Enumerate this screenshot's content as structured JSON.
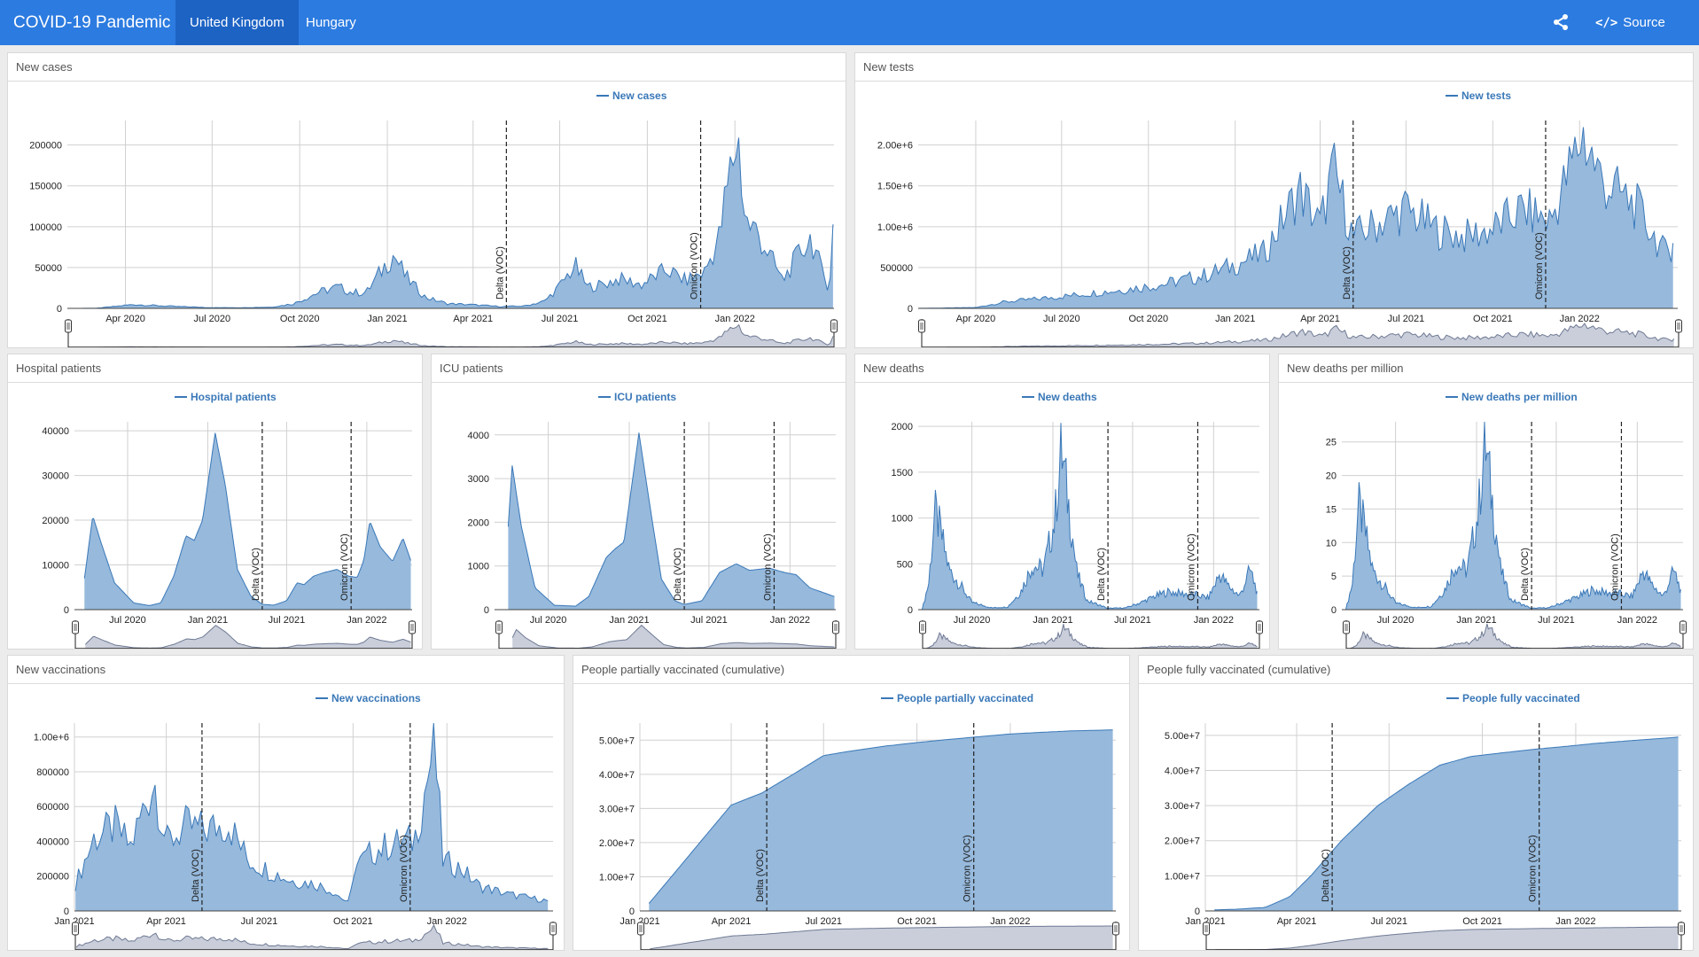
{
  "app": {
    "title": "COVID-19 Pandemic",
    "tabs": [
      {
        "label": "United Kingdom",
        "active": true
      },
      {
        "label": "Hungary",
        "active": false
      }
    ],
    "share_icon": "share-icon",
    "source_code_label": "Source Code",
    "source_code_icon": "code-icon",
    "brand_color": "#2c7be0"
  },
  "colors": {
    "series_line": "#3a78b8",
    "series_fill": "#96b9dc",
    "navigator_fill": "#c9ceda",
    "navigator_line": "#6f7a94",
    "grid": "#d0d0d0",
    "event_line": "#222222"
  },
  "events": [
    {
      "label": "Delta (VOC)",
      "date": "2021-05-06"
    },
    {
      "label": "Omicron (VOC)",
      "date": "2021-11-26"
    }
  ],
  "charts": [
    {
      "id": "new-cases",
      "title": "New cases",
      "legend": "New cases",
      "type": "area",
      "x_range": [
        "2020-01-31",
        "2022-04-15"
      ],
      "x_ticks": [
        "Apr 2020",
        "Jul 2020",
        "Oct 2020",
        "Jan 2021",
        "Apr 2021",
        "Jul 2021",
        "Oct 2021",
        "Jan 2022"
      ],
      "y_ticks": [
        "0",
        "50000",
        "100000",
        "150000",
        "200000"
      ],
      "y_max": 230000,
      "points": [
        [
          "2020-01-31",
          0
        ],
        [
          "2020-03-01",
          100
        ],
        [
          "2020-04-10",
          4800
        ],
        [
          "2020-05-15",
          2800
        ],
        [
          "2020-06-30",
          900
        ],
        [
          "2020-08-01",
          850
        ],
        [
          "2020-09-01",
          1500
        ],
        [
          "2020-09-25",
          6000
        ],
        [
          "2020-10-20",
          20000
        ],
        [
          "2020-11-10",
          27000
        ],
        [
          "2020-11-25",
          20000
        ],
        [
          "2020-12-10",
          20000
        ],
        [
          "2020-12-30",
          55000
        ],
        [
          "2021-01-08",
          68000
        ],
        [
          "2021-01-20",
          40000
        ],
        [
          "2021-02-10",
          14000
        ],
        [
          "2021-03-05",
          6000
        ],
        [
          "2021-04-01",
          4500
        ],
        [
          "2021-05-01",
          2200
        ],
        [
          "2021-05-25",
          3000
        ],
        [
          "2021-06-15",
          9000
        ],
        [
          "2021-07-01",
          28000
        ],
        [
          "2021-07-17",
          54000
        ],
        [
          "2021-07-30",
          27000
        ],
        [
          "2021-08-15",
          30000
        ],
        [
          "2021-09-01",
          37000
        ],
        [
          "2021-09-25",
          30000
        ],
        [
          "2021-10-21",
          49000
        ],
        [
          "2021-11-10",
          35000
        ],
        [
          "2021-11-30",
          46000
        ],
        [
          "2021-12-15",
          88000
        ],
        [
          "2021-12-29",
          185000
        ],
        [
          "2022-01-04",
          218000
        ],
        [
          "2022-01-12",
          110000
        ],
        [
          "2022-01-25",
          95000
        ],
        [
          "2022-02-05",
          70000
        ],
        [
          "2022-02-20",
          35000
        ],
        [
          "2022-03-10",
          70000
        ],
        [
          "2022-03-22",
          90000
        ],
        [
          "2022-04-01",
          50000
        ],
        [
          "2022-04-10",
          25000
        ],
        [
          "2022-04-14",
          100000
        ]
      ]
    },
    {
      "id": "new-tests",
      "title": "New tests",
      "legend": "New tests",
      "type": "area",
      "x_range": [
        "2020-01-31",
        "2022-04-15"
      ],
      "x_ticks": [
        "Apr 2020",
        "Jul 2020",
        "Oct 2020",
        "Jan 2021",
        "Apr 2021",
        "Jul 2021",
        "Oct 2021",
        "Jan 2022"
      ],
      "y_ticks": [
        "0",
        "500000",
        "1.00e+6",
        "1.50e+6",
        "2.00e+6"
      ],
      "y_max": 2300000,
      "points": [
        [
          "2020-01-31",
          0
        ],
        [
          "2020-04-01",
          10000
        ],
        [
          "2020-05-01",
          80000
        ],
        [
          "2020-07-01",
          150000
        ],
        [
          "2020-09-01",
          230000
        ],
        [
          "2020-10-15",
          300000
        ],
        [
          "2020-12-01",
          420000
        ],
        [
          "2021-01-01",
          550000
        ],
        [
          "2021-02-01",
          700000
        ],
        [
          "2021-03-10",
          1500000
        ],
        [
          "2021-04-01",
          1050000
        ],
        [
          "2021-04-15",
          1750000
        ],
        [
          "2021-05-06",
          900000
        ],
        [
          "2021-05-20",
          1000000
        ],
        [
          "2021-07-01",
          1250000
        ],
        [
          "2021-08-01",
          1000000
        ],
        [
          "2021-09-01",
          900000
        ],
        [
          "2021-10-01",
          1000000
        ],
        [
          "2021-11-01",
          1250000
        ],
        [
          "2021-12-01",
          1100000
        ],
        [
          "2021-12-20",
          1700000
        ],
        [
          "2022-01-04",
          2200000
        ],
        [
          "2022-01-25",
          1600000
        ],
        [
          "2022-03-01",
          1300000
        ],
        [
          "2022-04-01",
          700000
        ],
        [
          "2022-04-10",
          800000
        ]
      ]
    },
    {
      "id": "hospital-patients",
      "title": "Hospital patients",
      "legend": "Hospital patients",
      "type": "area",
      "x_range": [
        "2020-03-01",
        "2022-04-15"
      ],
      "x_ticks": [
        "Jul 2020",
        "Jan 2021",
        "Jul 2021",
        "Jan 2022"
      ],
      "y_ticks": [
        "0",
        "10000",
        "20000",
        "30000",
        "40000"
      ],
      "y_max": 42000,
      "points": [
        [
          "2020-03-24",
          7000
        ],
        [
          "2020-04-12",
          21000
        ],
        [
          "2020-05-01",
          15000
        ],
        [
          "2020-06-01",
          6000
        ],
        [
          "2020-07-15",
          1500
        ],
        [
          "2020-08-20",
          900
        ],
        [
          "2020-09-15",
          1500
        ],
        [
          "2020-10-15",
          7500
        ],
        [
          "2020-11-12",
          16500
        ],
        [
          "2020-12-01",
          15500
        ],
        [
          "2020-12-20",
          20000
        ],
        [
          "2021-01-18",
          39500
        ],
        [
          "2021-02-10",
          28000
        ],
        [
          "2021-03-10",
          9000
        ],
        [
          "2021-04-10",
          3000
        ],
        [
          "2021-05-06",
          1200
        ],
        [
          "2021-06-01",
          1000
        ],
        [
          "2021-07-01",
          2000
        ],
        [
          "2021-07-25",
          6000
        ],
        [
          "2021-08-10",
          5600
        ],
        [
          "2021-09-01",
          7500
        ],
        [
          "2021-09-25",
          8300
        ],
        [
          "2021-10-25",
          9000
        ],
        [
          "2021-11-20",
          7500
        ],
        [
          "2021-12-10",
          7200
        ],
        [
          "2021-12-25",
          11000
        ],
        [
          "2022-01-08",
          19800
        ],
        [
          "2022-02-01",
          14000
        ],
        [
          "2022-03-01",
          10800
        ],
        [
          "2022-03-25",
          16000
        ],
        [
          "2022-04-12",
          11000
        ]
      ]
    },
    {
      "id": "icu-patients",
      "title": "ICU patients",
      "legend": "ICU patients",
      "type": "area",
      "x_range": [
        "2020-03-01",
        "2022-04-15"
      ],
      "x_ticks": [
        "Jul 2020",
        "Jan 2021",
        "Jul 2021",
        "Jan 2022"
      ],
      "y_ticks": [
        "0",
        "1000",
        "2000",
        "3000",
        "4000"
      ],
      "y_max": 4300,
      "points": [
        [
          "2020-04-01",
          1900
        ],
        [
          "2020-04-10",
          3300
        ],
        [
          "2020-05-01",
          1900
        ],
        [
          "2020-06-01",
          500
        ],
        [
          "2020-07-15",
          100
        ],
        [
          "2020-09-01",
          80
        ],
        [
          "2020-10-01",
          300
        ],
        [
          "2020-11-10",
          1200
        ],
        [
          "2020-12-01",
          1400
        ],
        [
          "2020-12-20",
          1550
        ],
        [
          "2021-01-23",
          4050
        ],
        [
          "2021-02-15",
          2500
        ],
        [
          "2021-03-15",
          700
        ],
        [
          "2021-04-15",
          200
        ],
        [
          "2021-05-06",
          120
        ],
        [
          "2021-06-15",
          200
        ],
        [
          "2021-07-25",
          850
        ],
        [
          "2021-09-01",
          1050
        ],
        [
          "2021-10-01",
          900
        ],
        [
          "2021-11-15",
          950
        ],
        [
          "2021-12-20",
          850
        ],
        [
          "2022-01-15",
          800
        ],
        [
          "2022-02-15",
          500
        ],
        [
          "2022-04-12",
          300
        ]
      ]
    },
    {
      "id": "new-deaths",
      "title": "New deaths",
      "legend": "New deaths",
      "type": "area",
      "x_range": [
        "2020-03-01",
        "2022-04-15"
      ],
      "x_ticks": [
        "Jul 2020",
        "Jan 2021",
        "Jul 2021",
        "Jan 2022"
      ],
      "y_ticks": [
        "0",
        "500",
        "1000",
        "1500",
        "2000"
      ],
      "y_max": 2050,
      "points": [
        [
          "2020-03-10",
          0
        ],
        [
          "2020-03-25",
          300
        ],
        [
          "2020-04-08",
          1100
        ],
        [
          "2020-04-20",
          900
        ],
        [
          "2020-05-10",
          450
        ],
        [
          "2020-06-01",
          300
        ],
        [
          "2020-07-01",
          80
        ],
        [
          "2020-08-15",
          20
        ],
        [
          "2020-09-20",
          30
        ],
        [
          "2020-10-20",
          200
        ],
        [
          "2020-11-15",
          500
        ],
        [
          "2020-12-10",
          450
        ],
        [
          "2021-01-05",
          1000
        ],
        [
          "2021-01-20",
          1800
        ],
        [
          "2021-02-05",
          1200
        ],
        [
          "2021-02-25",
          400
        ],
        [
          "2021-03-20",
          100
        ],
        [
          "2021-05-06",
          15
        ],
        [
          "2021-06-15",
          20
        ],
        [
          "2021-07-20",
          80
        ],
        [
          "2021-08-20",
          150
        ],
        [
          "2021-09-20",
          200
        ],
        [
          "2021-10-20",
          180
        ],
        [
          "2021-11-20",
          170
        ],
        [
          "2021-12-20",
          130
        ],
        [
          "2022-01-15",
          400
        ],
        [
          "2022-02-01",
          280
        ],
        [
          "2022-03-01",
          150
        ],
        [
          "2022-03-25",
          450
        ],
        [
          "2022-04-10",
          200
        ]
      ]
    },
    {
      "id": "new-deaths-per-million",
      "title": "New deaths per million",
      "legend": "New deaths per million",
      "type": "area",
      "x_range": [
        "2020-03-01",
        "2022-04-15"
      ],
      "x_ticks": [
        "Jul 2020",
        "Jan 2021",
        "Jul 2021",
        "Jan 2022"
      ],
      "y_ticks": [
        "0",
        "5",
        "10",
        "15",
        "20",
        "25"
      ],
      "y_max": 28,
      "points": [
        [
          "2020-03-10",
          0
        ],
        [
          "2020-03-25",
          4
        ],
        [
          "2020-04-08",
          16
        ],
        [
          "2020-04-20",
          13
        ],
        [
          "2020-05-10",
          6
        ],
        [
          "2020-06-01",
          4
        ],
        [
          "2020-07-01",
          1
        ],
        [
          "2020-08-15",
          0.3
        ],
        [
          "2020-09-20",
          0.5
        ],
        [
          "2020-10-20",
          3
        ],
        [
          "2020-11-15",
          7
        ],
        [
          "2020-12-10",
          6
        ],
        [
          "2021-01-05",
          15
        ],
        [
          "2021-01-20",
          26
        ],
        [
          "2021-02-05",
          17
        ],
        [
          "2021-02-25",
          6
        ],
        [
          "2021-03-20",
          1.5
        ],
        [
          "2021-05-06",
          0.2
        ],
        [
          "2021-06-15",
          0.3
        ],
        [
          "2021-07-20",
          1.2
        ],
        [
          "2021-08-20",
          2
        ],
        [
          "2021-09-20",
          3
        ],
        [
          "2021-10-20",
          2.6
        ],
        [
          "2021-11-20",
          2.5
        ],
        [
          "2021-12-20",
          2
        ],
        [
          "2022-01-15",
          6
        ],
        [
          "2022-02-01",
          4
        ],
        [
          "2022-03-01",
          2
        ],
        [
          "2022-03-25",
          6
        ],
        [
          "2022-04-10",
          3
        ]
      ]
    },
    {
      "id": "new-vaccinations",
      "title": "New vaccinations",
      "legend": "New vaccinations",
      "type": "area",
      "x_range": [
        "2021-01-01",
        "2022-04-15"
      ],
      "x_ticks": [
        "Jan 2021",
        "Apr 2021",
        "Jul 2021",
        "Oct 2021",
        "Jan 2022"
      ],
      "y_ticks": [
        "0",
        "200000",
        "400000",
        "600000",
        "800000",
        "1.00e+6"
      ],
      "y_max": 1080000,
      "points": [
        [
          "2021-01-02",
          160000
        ],
        [
          "2021-01-20",
          430000
        ],
        [
          "2021-02-10",
          500000
        ],
        [
          "2021-02-25",
          380000
        ],
        [
          "2021-03-20",
          780000
        ],
        [
          "2021-04-01",
          400000
        ],
        [
          "2021-04-20",
          500000
        ],
        [
          "2021-05-10",
          480000
        ],
        [
          "2021-06-01",
          520000
        ],
        [
          "2021-06-20",
          300000
        ],
        [
          "2021-07-10",
          240000
        ],
        [
          "2021-08-01",
          180000
        ],
        [
          "2021-08-25",
          160000
        ],
        [
          "2021-09-10",
          120000
        ],
        [
          "2021-09-28",
          40000
        ],
        [
          "2021-10-01",
          250000
        ],
        [
          "2021-10-20",
          350000
        ],
        [
          "2021-11-10",
          400000
        ],
        [
          "2021-11-30",
          420000
        ],
        [
          "2021-12-10",
          700000
        ],
        [
          "2021-12-20",
          1000000
        ],
        [
          "2021-12-28",
          300000
        ],
        [
          "2022-01-15",
          250000
        ],
        [
          "2022-02-01",
          150000
        ],
        [
          "2022-03-01",
          100000
        ],
        [
          "2022-04-10",
          60000
        ]
      ]
    },
    {
      "id": "people-partially-vaccinated",
      "title": "People partially vaccinated (cumulative)",
      "legend": "People partially vaccinated",
      "type": "area",
      "x_range": [
        "2021-01-01",
        "2022-04-15"
      ],
      "x_ticks": [
        "Jan 2021",
        "Apr 2021",
        "Jul 2021",
        "Oct 2021",
        "Jan 2022"
      ],
      "y_ticks": [
        "0",
        "1.00e+7",
        "2.00e+7",
        "3.00e+7",
        "4.00e+7",
        "5.00e+7"
      ],
      "y_max": 55000000,
      "points": [
        [
          "2021-01-10",
          2200000
        ],
        [
          "2021-02-01",
          10000000
        ],
        [
          "2021-03-01",
          20000000
        ],
        [
          "2021-04-01",
          31000000
        ],
        [
          "2021-05-01",
          34500000
        ],
        [
          "2021-06-01",
          40000000
        ],
        [
          "2021-07-01",
          45500000
        ],
        [
          "2021-08-01",
          47000000
        ],
        [
          "2021-09-01",
          48300000
        ],
        [
          "2021-10-01",
          49300000
        ],
        [
          "2021-11-01",
          50200000
        ],
        [
          "2021-12-01",
          51000000
        ],
        [
          "2022-01-01",
          51800000
        ],
        [
          "2022-02-01",
          52300000
        ],
        [
          "2022-03-01",
          52700000
        ],
        [
          "2022-04-12",
          53000000
        ]
      ]
    },
    {
      "id": "people-fully-vaccinated",
      "title": "People fully vaccinated (cumulative)",
      "legend": "People fully vaccinated",
      "type": "area",
      "x_range": [
        "2021-01-01",
        "2022-04-15"
      ],
      "x_ticks": [
        "Jan 2021",
        "Apr 2021",
        "Jul 2021",
        "Oct 2021",
        "Jan 2022"
      ],
      "y_ticks": [
        "0",
        "1.00e+7",
        "2.00e+7",
        "3.00e+7",
        "4.00e+7",
        "5.00e+7"
      ],
      "y_max": 53500000,
      "points": [
        [
          "2021-01-10",
          300000
        ],
        [
          "2021-02-01",
          500000
        ],
        [
          "2021-03-01",
          1000000
        ],
        [
          "2021-03-25",
          4000000
        ],
        [
          "2021-04-15",
          10000000
        ],
        [
          "2021-05-15",
          20000000
        ],
        [
          "2021-06-20",
          30000000
        ],
        [
          "2021-07-20",
          36000000
        ],
        [
          "2021-08-20",
          41500000
        ],
        [
          "2021-09-20",
          44000000
        ],
        [
          "2021-10-20",
          45000000
        ],
        [
          "2021-11-20",
          46000000
        ],
        [
          "2021-12-20",
          46800000
        ],
        [
          "2022-01-20",
          47700000
        ],
        [
          "2022-02-20",
          48400000
        ],
        [
          "2022-03-20",
          49000000
        ],
        [
          "2022-04-12",
          49500000
        ]
      ]
    }
  ]
}
